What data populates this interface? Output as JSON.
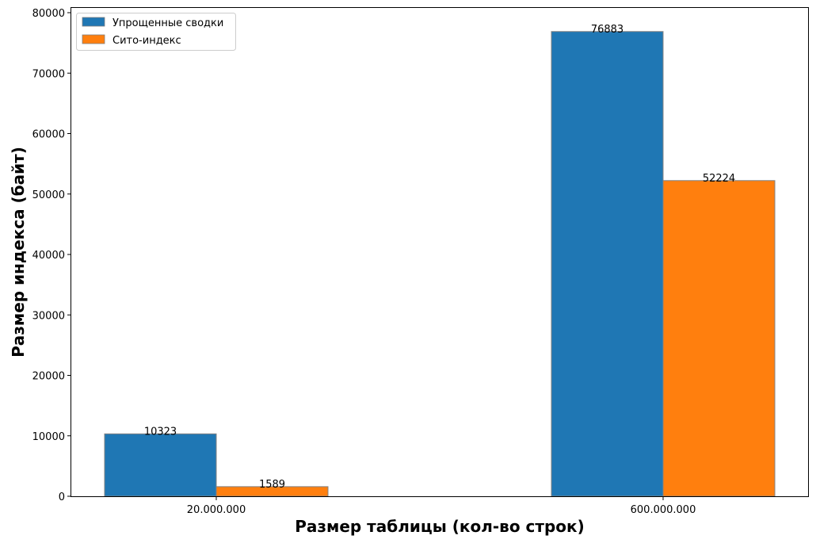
{
  "chart_data": {
    "type": "bar",
    "title": "",
    "xlabel": "Размер таблицы (кол-во строк)",
    "ylabel": "Размер индекса (байт)",
    "categories": [
      "20.000.000",
      "600.000.000"
    ],
    "series": [
      {
        "name": "Упрощенные сводки",
        "values": [
          10323,
          76883
        ],
        "color": "#1f77b4"
      },
      {
        "name": "Сито-индекс",
        "values": [
          1589,
          52224
        ],
        "color": "#ff7f0e"
      }
    ],
    "data_labels": [
      [
        "10323",
        "76883"
      ],
      [
        "1589",
        "52224"
      ]
    ],
    "ylim": [
      0,
      80000
    ],
    "yticks": [
      0,
      10000,
      20000,
      30000,
      40000,
      50000,
      60000,
      70000,
      80000
    ],
    "grid": false,
    "legend_position": "top-left",
    "bar_edge_color": "#808080"
  }
}
